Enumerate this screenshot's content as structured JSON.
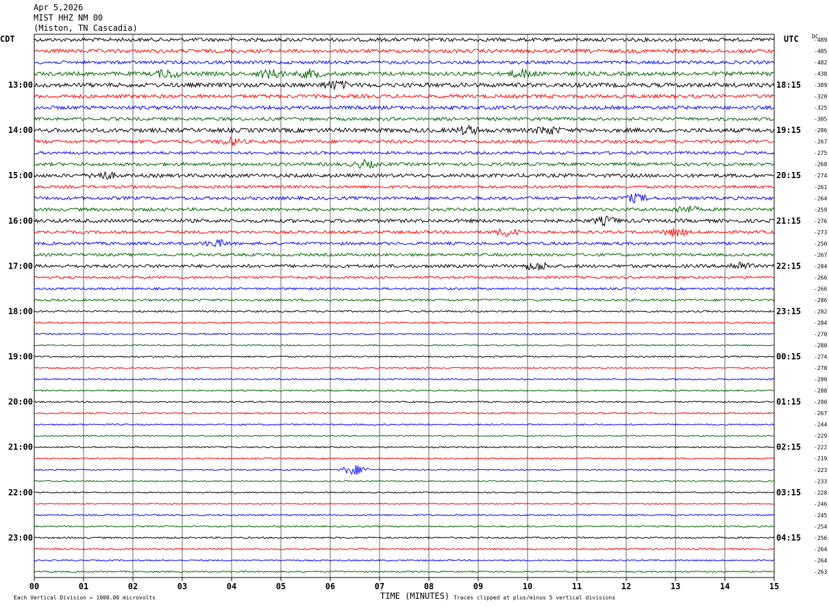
{
  "header": {
    "date": "Apr 5,2026",
    "station": "MIST HHZ NM 00",
    "location": "(Miston, TN Cascadia)"
  },
  "left_tz": "CDT",
  "right_tz": "UTC",
  "dc_label": "DC",
  "footer": {
    "scale_note": "Each Vertical Division = 1000.00 microvolts",
    "xlabel": "TIME (MINUTES)",
    "clip_note": "Traces clipped at plus/minus 5 vertical divisions"
  },
  "colors": {
    "cycle": [
      "#000000",
      "#ff0000",
      "#0000ff",
      "#006400"
    ],
    "grid": "#000000"
  },
  "chart_data": {
    "type": "line",
    "title": "MIST HHZ NM 00",
    "xlabel": "TIME (MINUTES)",
    "x_range": [
      0,
      15
    ],
    "x_ticks": [
      "00",
      "01",
      "02",
      "03",
      "04",
      "05",
      "06",
      "07",
      "08",
      "09",
      "10",
      "11",
      "12",
      "13",
      "14",
      "15"
    ],
    "left_hour_labels": [
      "13:00",
      "14:00",
      "15:00",
      "16:00",
      "17:00",
      "18:00",
      "19:00",
      "20:00",
      "21:00",
      "22:00",
      "23:00"
    ],
    "right_hour_labels": [
      "18:15",
      "19:15",
      "20:15",
      "21:15",
      "22:15",
      "23:15",
      "00:15",
      "01:15",
      "02:15",
      "03:15",
      "04:15"
    ],
    "hour_label_first_trace": 4,
    "dc_offsets": [
      -489,
      -485,
      -482,
      -438,
      -389,
      -320,
      -325,
      -305,
      -286,
      -267,
      -275,
      -268,
      -274,
      -261,
      -264,
      -259,
      -276,
      -273,
      -250,
      -267,
      -284,
      -266,
      -266,
      -286,
      -282,
      -284,
      -270,
      -280,
      -274,
      -278,
      -280,
      -288,
      -280,
      -267,
      -244,
      -229,
      -222,
      -219,
      -223,
      -233,
      -228,
      -246,
      -245,
      -254,
      -256,
      -264,
      -264,
      -263
    ],
    "trace_amplitude": [
      1.0,
      1.0,
      0.9,
      1.1,
      1.2,
      1.0,
      1.0,
      0.9,
      1.2,
      0.9,
      0.8,
      0.9,
      1.0,
      0.8,
      0.9,
      0.9,
      1.0,
      0.8,
      0.8,
      0.8,
      0.9,
      0.7,
      0.6,
      0.6,
      0.5,
      0.45,
      0.4,
      0.4,
      0.4,
      0.4,
      0.4,
      0.4,
      0.4,
      0.4,
      0.4,
      0.35,
      0.4,
      0.4,
      0.35,
      0.35,
      0.35,
      0.35,
      0.4,
      0.4,
      0.45,
      0.45,
      0.4,
      0.4
    ],
    "events": [
      {
        "trace": 3,
        "minute": 2.7,
        "strength": 2.0
      },
      {
        "trace": 3,
        "minute": 4.8,
        "strength": 2.5
      },
      {
        "trace": 3,
        "minute": 5.6,
        "strength": 2.0
      },
      {
        "trace": 3,
        "minute": 9.9,
        "strength": 2.0
      },
      {
        "trace": 4,
        "minute": 6.1,
        "strength": 2.0
      },
      {
        "trace": 8,
        "minute": 8.8,
        "strength": 1.8
      },
      {
        "trace": 8,
        "minute": 10.4,
        "strength": 1.8
      },
      {
        "trace": 9,
        "minute": 4.0,
        "strength": 1.6
      },
      {
        "trace": 11,
        "minute": 6.7,
        "strength": 1.6
      },
      {
        "trace": 12,
        "minute": 1.4,
        "strength": 1.8
      },
      {
        "trace": 14,
        "minute": 12.2,
        "strength": 1.8
      },
      {
        "trace": 15,
        "minute": 13.2,
        "strength": 1.6
      },
      {
        "trace": 16,
        "minute": 11.6,
        "strength": 1.8
      },
      {
        "trace": 17,
        "minute": 9.6,
        "strength": 1.8
      },
      {
        "trace": 17,
        "minute": 13.0,
        "strength": 2.0
      },
      {
        "trace": 18,
        "minute": 3.7,
        "strength": 1.6
      },
      {
        "trace": 20,
        "minute": 10.2,
        "strength": 2.0
      },
      {
        "trace": 20,
        "minute": 14.3,
        "strength": 1.8
      },
      {
        "trace": 38,
        "minute": 6.5,
        "strength": 3.0
      }
    ],
    "grid": true
  }
}
